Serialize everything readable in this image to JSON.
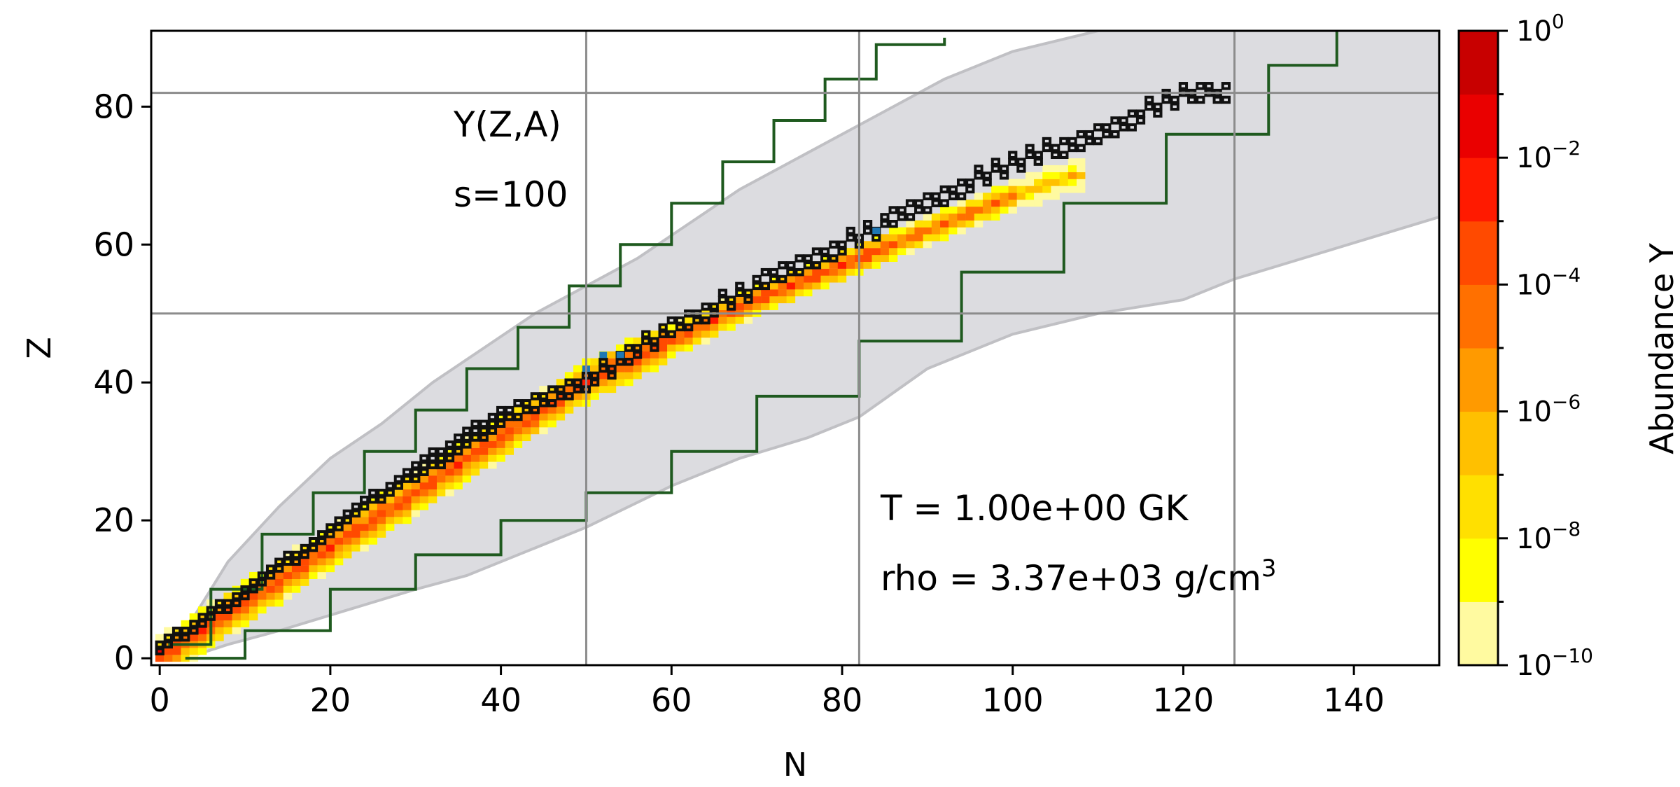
{
  "chart_data": {
    "type": "heatmap",
    "title": "",
    "xlabel": "N",
    "ylabel": "Z",
    "xlim": [
      -1,
      150
    ],
    "ylim": [
      -1,
      91
    ],
    "xticks": [
      0,
      20,
      40,
      60,
      80,
      100,
      120,
      140
    ],
    "yticks": [
      0,
      20,
      40,
      60,
      80
    ],
    "magic_lines": {
      "N": [
        50,
        82,
        126
      ],
      "Z": [
        50,
        82
      ]
    },
    "annotations": {
      "quantity": "Y(Z,A)",
      "entropy": "s=100",
      "temperature": "T = 1.00e+00 GK",
      "density_prefix": "rho = 3.37e+03 g/cm",
      "density_exponent": "3"
    },
    "colorbar": {
      "label": "Abundance Y",
      "scale": "log",
      "range": [
        1e-10,
        1
      ],
      "tick_exponents": [
        -10,
        -8,
        -6,
        -4,
        -2,
        0
      ],
      "levels_log10": [
        -10,
        -9,
        -8,
        -7,
        -6,
        -5,
        -4,
        -3,
        -2,
        -1,
        0
      ],
      "colors": [
        "#fffaa0",
        "#ffff00",
        "#ffe000",
        "#ffc000",
        "#ff9a00",
        "#ff7000",
        "#ff4a00",
        "#ff1a00",
        "#ea0000",
        "#c80000"
      ],
      "tick_base": "10"
    },
    "colors": {
      "network_region": "#dcdce0",
      "network_edge": "#c0c0c4",
      "contour": "#1f5a1f",
      "stable_nuclei": "#111111",
      "seed_nuclei": "#1f77b4",
      "grid": "#8c8c8c"
    },
    "ridge_path": {
      "description_free": true,
      "points": [
        [
          0,
          0
        ],
        [
          10,
          8
        ],
        [
          20,
          16
        ],
        [
          30,
          24
        ],
        [
          40,
          32
        ],
        [
          50,
          40
        ],
        [
          60,
          46
        ],
        [
          70,
          52
        ],
        [
          80,
          57
        ],
        [
          90,
          62
        ],
        [
          100,
          67
        ],
        [
          107,
          70
        ]
      ]
    },
    "stable_valley": {
      "points": [
        [
          0,
          1
        ],
        [
          10,
          9
        ],
        [
          20,
          18
        ],
        [
          30,
          27
        ],
        [
          40,
          35
        ],
        [
          50,
          40
        ],
        [
          60,
          48
        ],
        [
          70,
          54
        ],
        [
          80,
          60
        ],
        [
          90,
          66
        ],
        [
          100,
          72
        ],
        [
          110,
          76
        ],
        [
          120,
          82
        ],
        [
          125,
          82
        ]
      ]
    },
    "seed_nuclei": [
      [
        50,
        42
      ],
      [
        52,
        44
      ],
      [
        54,
        44
      ],
      [
        84,
        62
      ]
    ]
  }
}
